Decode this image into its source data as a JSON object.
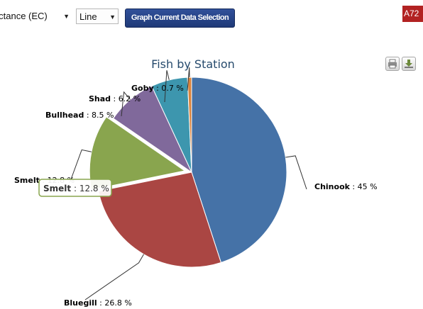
{
  "toolbar": {
    "parameter_select_value": "luctance (EC)",
    "chart_type_select_value": "Line",
    "graph_button_label": "Graph Current Data Selection",
    "badge_text": "A72"
  },
  "chart_data": {
    "type": "pie",
    "title": "Fish by Station",
    "slices": [
      {
        "name": "Chinook",
        "value": 45,
        "label": "45 %",
        "color": "#4572a7"
      },
      {
        "name": "Bluegill",
        "value": 26.8,
        "label": "26.8 %",
        "color": "#aa4643"
      },
      {
        "name": "Smelt",
        "value": 12.8,
        "label": "12.8 %",
        "color": "#89a54e",
        "sliced": true
      },
      {
        "name": "Bullhead",
        "value": 8.5,
        "label": "8.5 %",
        "color": "#80699b"
      },
      {
        "name": "Shad",
        "value": 6.2,
        "label": "6.2 %",
        "color": "#3d96ae"
      },
      {
        "name": "Goby",
        "value": 0.7,
        "label": "0.7 %",
        "color": "#db843d"
      }
    ],
    "tooltip": {
      "name": "Smelt",
      "label": "12.8 %"
    }
  },
  "icons": {
    "print": "print-icon",
    "download": "download-icon"
  }
}
